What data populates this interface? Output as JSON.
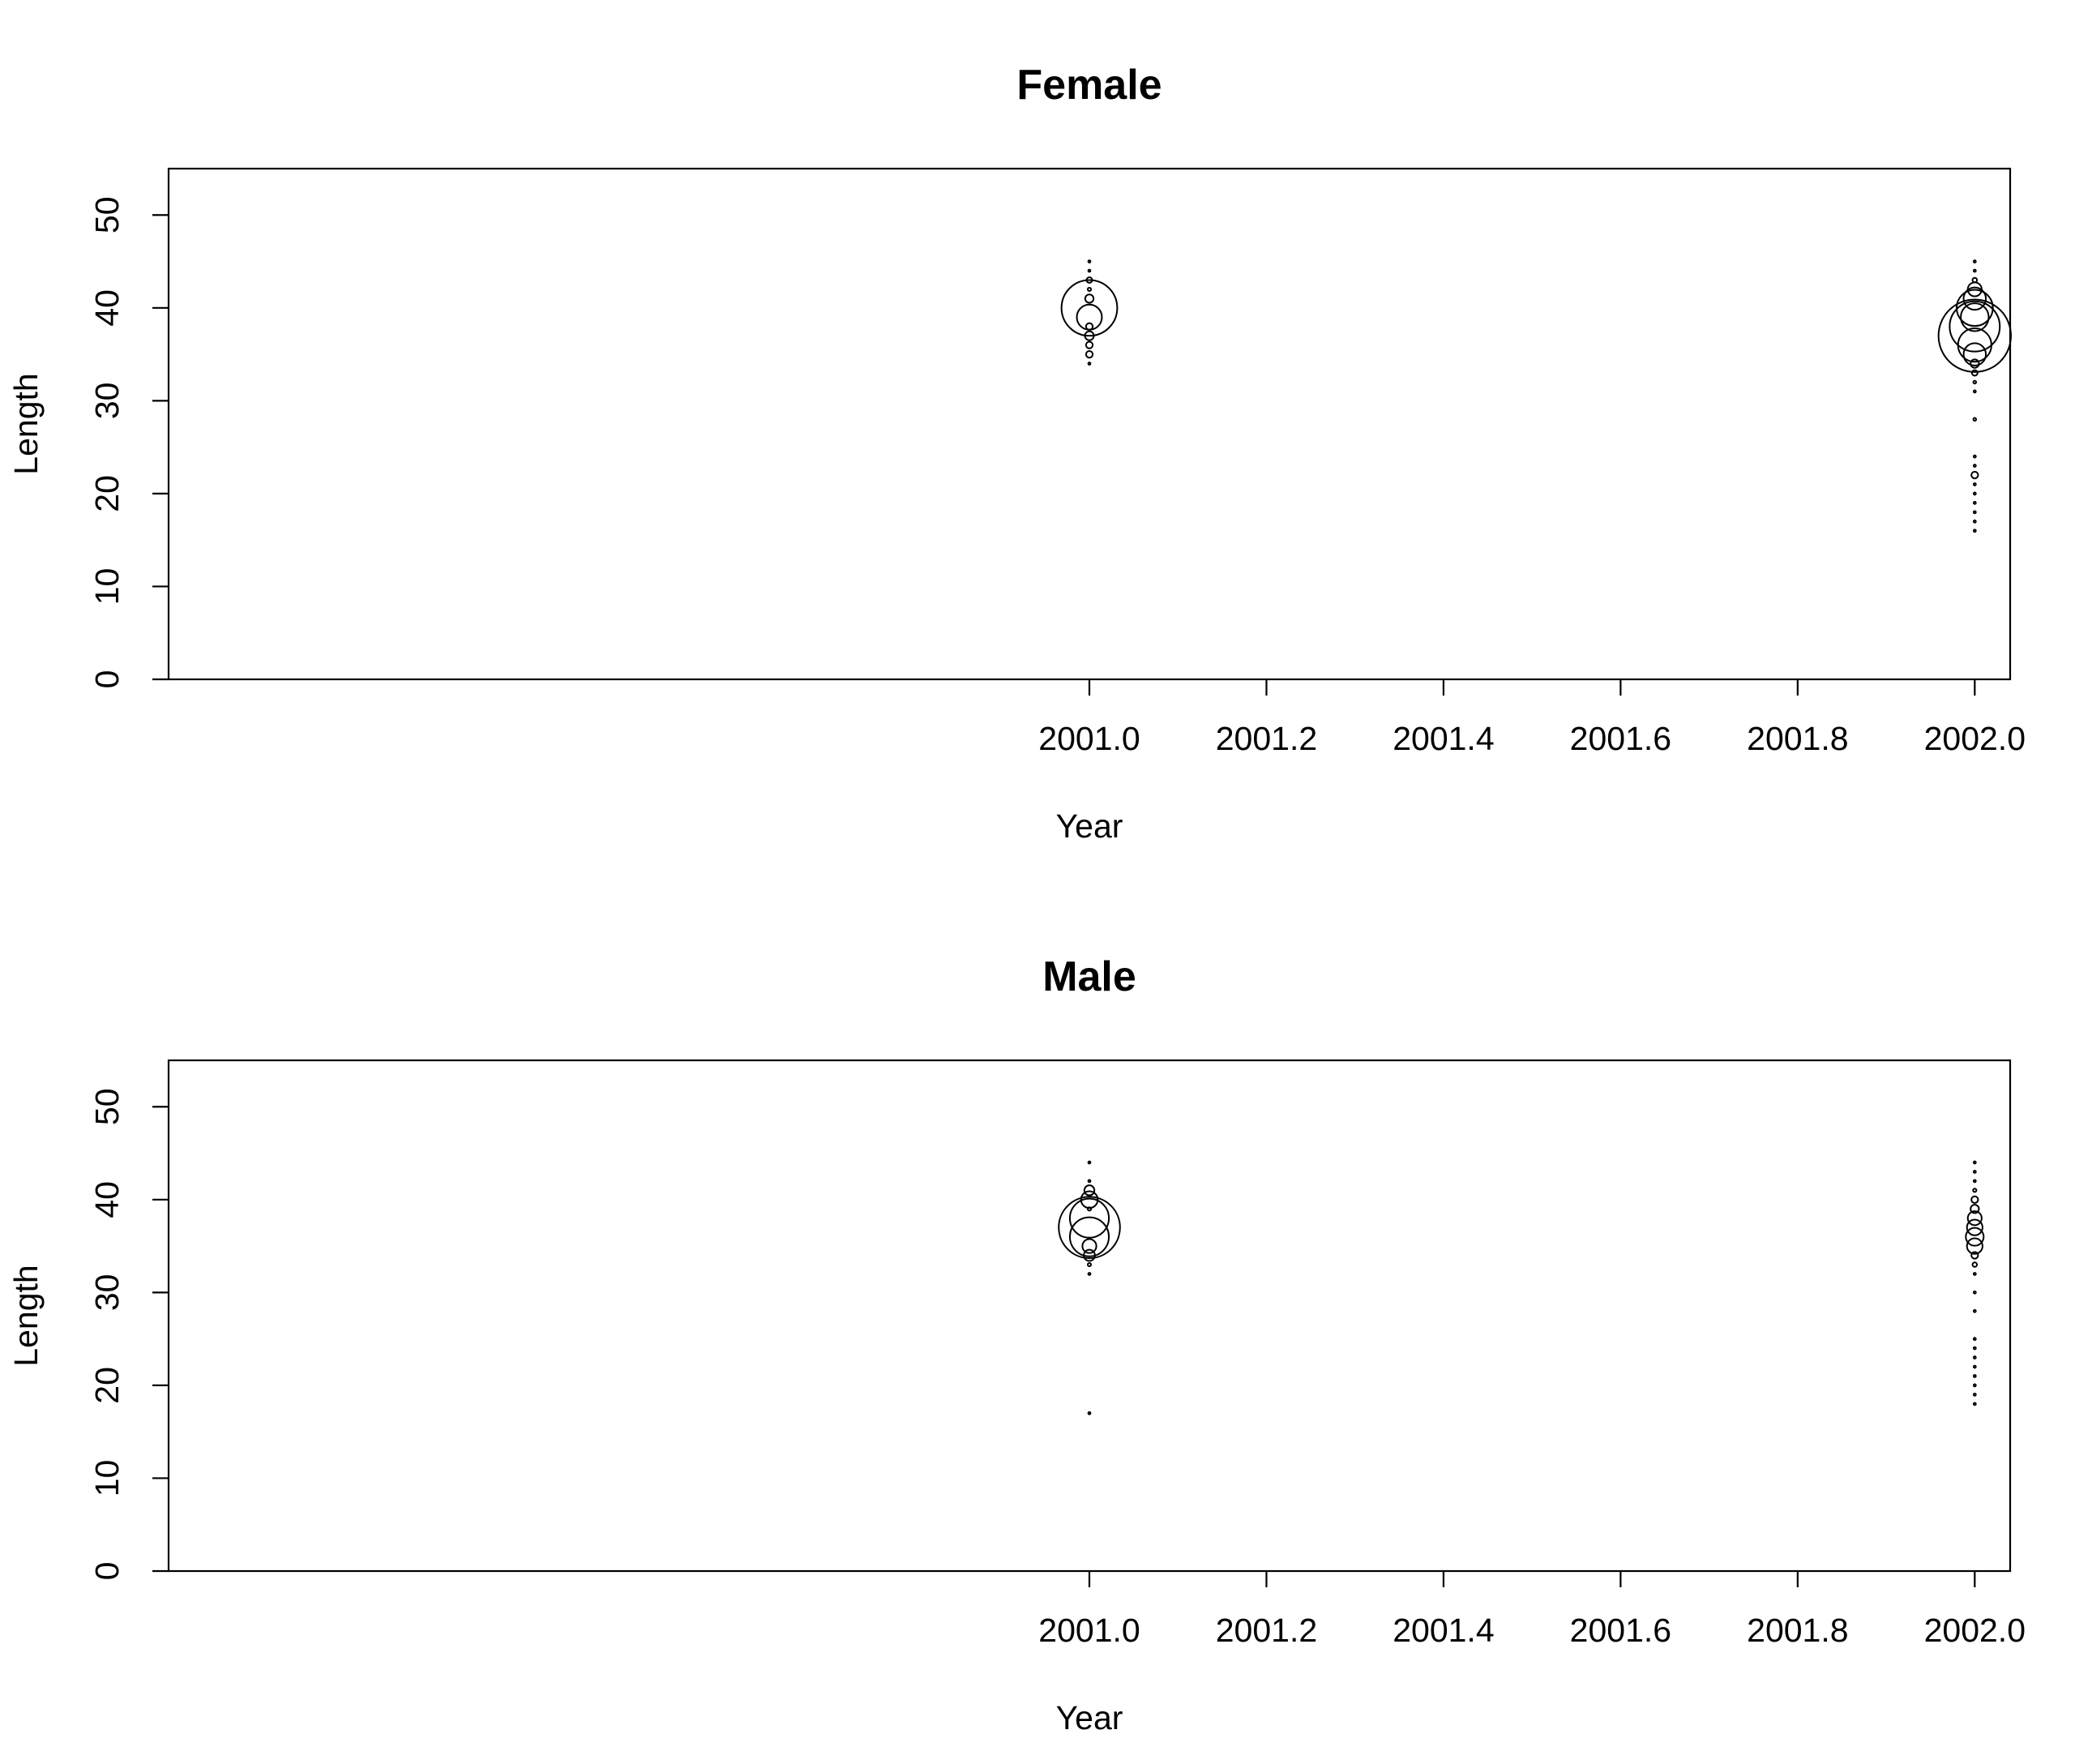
{
  "chart_data": [
    {
      "type": "scatter",
      "title": "Female",
      "xlabel": "Year",
      "ylabel": "Length",
      "xlim": [
        1999.96,
        2002.04
      ],
      "ylim": [
        0,
        55
      ],
      "x_ticks": [
        "2001.0",
        "2001.2",
        "2001.4",
        "2001.6",
        "2001.8",
        "2002.0"
      ],
      "y_ticks": [
        "0",
        "10",
        "20",
        "30",
        "40",
        "50"
      ],
      "points": [
        {
          "x": 2001.0,
          "y": 45,
          "r": 0.4
        },
        {
          "x": 2001.0,
          "y": 44,
          "r": 0.4
        },
        {
          "x": 2001.0,
          "y": 43,
          "r": 1
        },
        {
          "x": 2001.0,
          "y": 42,
          "r": 0.6
        },
        {
          "x": 2001.0,
          "y": 41,
          "r": 1.5
        },
        {
          "x": 2001.0,
          "y": 40,
          "r": 10
        },
        {
          "x": 2001.0,
          "y": 39,
          "r": 4.5
        },
        {
          "x": 2001.0,
          "y": 38,
          "r": 1.2
        },
        {
          "x": 2001.0,
          "y": 37,
          "r": 1.6
        },
        {
          "x": 2001.0,
          "y": 36,
          "r": 1.2
        },
        {
          "x": 2001.0,
          "y": 35,
          "r": 1.2
        },
        {
          "x": 2001.0,
          "y": 34,
          "r": 0.4
        },
        {
          "x": 2002.0,
          "y": 45,
          "r": 0.4
        },
        {
          "x": 2002.0,
          "y": 44,
          "r": 0.4
        },
        {
          "x": 2002.0,
          "y": 43,
          "r": 0.8
        },
        {
          "x": 2002.0,
          "y": 42,
          "r": 2.5
        },
        {
          "x": 2002.0,
          "y": 41,
          "r": 4
        },
        {
          "x": 2002.0,
          "y": 40,
          "r": 6.5
        },
        {
          "x": 2002.0,
          "y": 39,
          "r": 5
        },
        {
          "x": 2002.0,
          "y": 38,
          "r": 9
        },
        {
          "x": 2002.0,
          "y": 37,
          "r": 13
        },
        {
          "x": 2002.0,
          "y": 36,
          "r": 6
        },
        {
          "x": 2002.0,
          "y": 35,
          "r": 4
        },
        {
          "x": 2002.0,
          "y": 34,
          "r": 1.5
        },
        {
          "x": 2002.0,
          "y": 33,
          "r": 1
        },
        {
          "x": 2002.0,
          "y": 32,
          "r": 0.5
        },
        {
          "x": 2002.0,
          "y": 31,
          "r": 0.4
        },
        {
          "x": 2002.0,
          "y": 28,
          "r": 0.5
        },
        {
          "x": 2002.0,
          "y": 24,
          "r": 0.4
        },
        {
          "x": 2002.0,
          "y": 23,
          "r": 0.4
        },
        {
          "x": 2002.0,
          "y": 22,
          "r": 1.2
        },
        {
          "x": 2002.0,
          "y": 21,
          "r": 0.4
        },
        {
          "x": 2002.0,
          "y": 20,
          "r": 0.4
        },
        {
          "x": 2002.0,
          "y": 19,
          "r": 0.4
        },
        {
          "x": 2002.0,
          "y": 18,
          "r": 0.4
        },
        {
          "x": 2002.0,
          "y": 17,
          "r": 0.4
        },
        {
          "x": 2002.0,
          "y": 16,
          "r": 0.4
        }
      ]
    },
    {
      "type": "scatter",
      "title": "Male",
      "xlabel": "Year",
      "ylabel": "Length",
      "xlim": [
        1999.96,
        2002.04
      ],
      "ylim": [
        0,
        55
      ],
      "x_ticks": [
        "2001.0",
        "2001.2",
        "2001.4",
        "2001.6",
        "2001.8",
        "2002.0"
      ],
      "y_ticks": [
        "0",
        "10",
        "20",
        "30",
        "40",
        "50"
      ],
      "points": [
        {
          "x": 2001.0,
          "y": 44,
          "r": 0.4
        },
        {
          "x": 2001.0,
          "y": 42,
          "r": 0.4
        },
        {
          "x": 2001.0,
          "y": 41,
          "r": 1.8
        },
        {
          "x": 2001.0,
          "y": 40,
          "r": 3
        },
        {
          "x": 2001.0,
          "y": 39,
          "r": 0.6
        },
        {
          "x": 2001.0,
          "y": 38,
          "r": 7
        },
        {
          "x": 2001.0,
          "y": 37,
          "r": 11
        },
        {
          "x": 2001.0,
          "y": 36,
          "r": 7
        },
        {
          "x": 2001.0,
          "y": 35,
          "r": 2.5
        },
        {
          "x": 2001.0,
          "y": 34,
          "r": 2
        },
        {
          "x": 2001.0,
          "y": 33,
          "r": 0.6
        },
        {
          "x": 2001.0,
          "y": 32,
          "r": 0.4
        },
        {
          "x": 2001.0,
          "y": 17,
          "r": 0.4
        },
        {
          "x": 2002.0,
          "y": 44,
          "r": 0.4
        },
        {
          "x": 2002.0,
          "y": 43,
          "r": 0.4
        },
        {
          "x": 2002.0,
          "y": 42,
          "r": 0.4
        },
        {
          "x": 2002.0,
          "y": 41,
          "r": 0.6
        },
        {
          "x": 2002.0,
          "y": 40,
          "r": 1.2
        },
        {
          "x": 2002.0,
          "y": 39,
          "r": 1.5
        },
        {
          "x": 2002.0,
          "y": 38,
          "r": 2.5
        },
        {
          "x": 2002.0,
          "y": 37,
          "r": 2.8
        },
        {
          "x": 2002.0,
          "y": 36,
          "r": 3.2
        },
        {
          "x": 2002.0,
          "y": 35,
          "r": 2.8
        },
        {
          "x": 2002.0,
          "y": 34,
          "r": 1.2
        },
        {
          "x": 2002.0,
          "y": 33,
          "r": 0.8
        },
        {
          "x": 2002.0,
          "y": 32,
          "r": 0.4
        },
        {
          "x": 2002.0,
          "y": 30,
          "r": 0.4
        },
        {
          "x": 2002.0,
          "y": 28,
          "r": 0.4
        },
        {
          "x": 2002.0,
          "y": 25,
          "r": 0.4
        },
        {
          "x": 2002.0,
          "y": 24,
          "r": 0.4
        },
        {
          "x": 2002.0,
          "y": 23,
          "r": 0.4
        },
        {
          "x": 2002.0,
          "y": 22,
          "r": 0.4
        },
        {
          "x": 2002.0,
          "y": 21,
          "r": 0.4
        },
        {
          "x": 2002.0,
          "y": 20,
          "r": 0.4
        },
        {
          "x": 2002.0,
          "y": 19,
          "r": 0.4
        },
        {
          "x": 2002.0,
          "y": 18,
          "r": 0.4
        }
      ]
    }
  ]
}
